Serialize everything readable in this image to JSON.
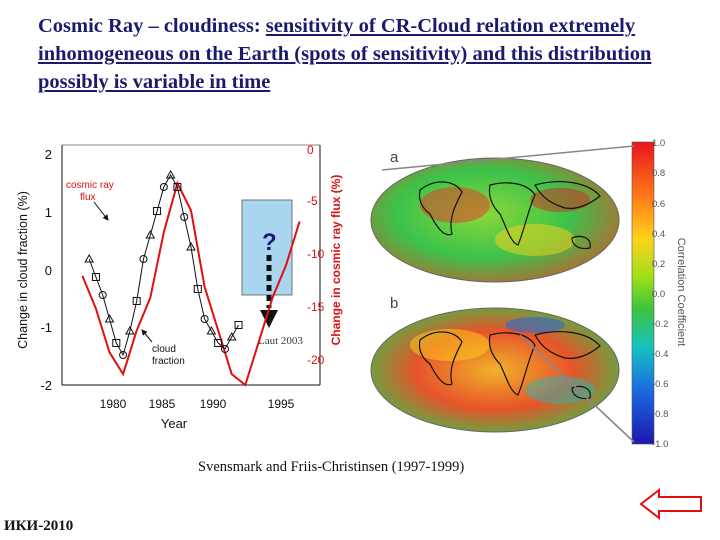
{
  "title": {
    "prefix": "Cosmic Ray – cloudiness: ",
    "underlined": "sensitivity of CR-Cloud relation extremely inhomogeneous on the Earth (spots of sensitivity) and this distribution possibly is variable in time"
  },
  "caption": "Svensmark and Friis-Christinsen (1997-1999)",
  "footer": "ИКИ-2010",
  "plot": {
    "ylabel_left": "Change in cloud fraction (%)",
    "ylabel_right": "Change in cosmic ray flux (%)",
    "xlabel": "Year",
    "left_ticks": [
      "2",
      "1",
      "0",
      "-1",
      "-2"
    ],
    "right_ticks": [
      "0",
      "-5",
      "-10",
      "-15",
      "-20"
    ],
    "x_ticks": [
      "1980",
      "1985",
      "1990",
      "1995"
    ],
    "label_cosmic": [
      "cosmic ray",
      "flux"
    ],
    "label_cloud": [
      "cloud",
      "fraction"
    ],
    "question_mark": "?",
    "laut": "Laut 2003"
  },
  "maps": {
    "label_a": "a",
    "label_b": "b",
    "colorbar_title": "Correlation Coefficient",
    "colorbar_ticks": [
      "1.0",
      "0.8",
      "0.6",
      "0.4",
      "0.2",
      "0.0",
      "-0.2",
      "-0.4",
      "-0.6",
      "-0.8",
      "-1.0"
    ]
  },
  "colors": {
    "title": "#1a1a6e",
    "cosmic_ray_curve": "#e01010",
    "cloud_series": "#111111",
    "highlight_box": "#a9d6ee"
  },
  "chart_data": {
    "type": "line",
    "xlabel": "Year",
    "ylabel": "Change in cloud fraction (%)",
    "y2label": "Change in cosmic ray flux (%)",
    "xlim": [
      1978,
      1997
    ],
    "ylim": [
      -2,
      2
    ],
    "y2lim": [
      -22,
      0
    ],
    "series": [
      {
        "name": "cosmic ray flux",
        "axis": "right",
        "x": [
          1979.5,
          1980.5,
          1981.5,
          1982.5,
          1983.5,
          1984.5,
          1985.5,
          1986.5,
          1987.5,
          1988.5,
          1989.5,
          1990.5,
          1991.5,
          1992.5,
          1993.5,
          1994.5,
          1995.5
        ],
        "values": [
          -12,
          -15,
          -19,
          -21,
          -17,
          -14,
          -8,
          -3.5,
          -6,
          -13,
          -17,
          -21,
          -22,
          -18,
          -14,
          -11,
          -7
        ]
      },
      {
        "name": "cloud fraction",
        "axis": "left",
        "x": [
          1980,
          1980.5,
          1981,
          1981.5,
          1982,
          1982.5,
          1983,
          1983.5,
          1984,
          1984.5,
          1985,
          1985.5,
          1986,
          1986.5,
          1987,
          1987.5,
          1988,
          1988.5,
          1989,
          1989.5,
          1990,
          1990.5,
          1991
        ],
        "values": [
          0.1,
          -0.2,
          -0.5,
          -0.9,
          -1.3,
          -1.5,
          -1.1,
          -0.6,
          0.1,
          0.5,
          0.9,
          1.3,
          1.5,
          1.3,
          0.8,
          0.3,
          -0.4,
          -0.9,
          -1.1,
          -1.3,
          -1.4,
          -1.2,
          -1.0
        ]
      }
    ]
  }
}
